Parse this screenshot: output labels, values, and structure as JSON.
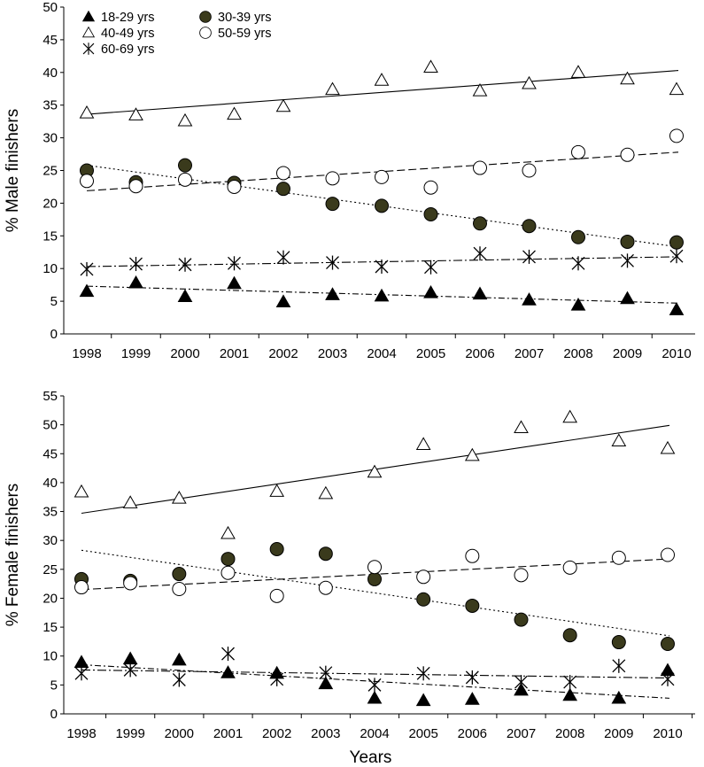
{
  "chart_data": [
    {
      "id": "male",
      "type": "scatter",
      "ylabel": "% Male finishers",
      "xlabel": "",
      "ylim": [
        0,
        50
      ],
      "yticks": [
        0,
        5,
        10,
        15,
        20,
        25,
        30,
        35,
        40,
        45,
        50
      ],
      "x": [
        "1998",
        "1999",
        "2000",
        "2001",
        "2002",
        "2003",
        "2004",
        "2005",
        "2006",
        "2007",
        "2008",
        "2009",
        "2010"
      ],
      "legend": [
        {
          "key": "s18",
          "label": "18-29 yrs"
        },
        {
          "key": "s30",
          "label": "30-39 yrs"
        },
        {
          "key": "s40",
          "label": "40-49 yrs"
        },
        {
          "key": "s50",
          "label": "50-59 yrs"
        },
        {
          "key": "s60",
          "label": "60-69 yrs"
        }
      ],
      "series": [
        {
          "key": "s18",
          "name": "18-29 yrs",
          "marker": "triangle-filled",
          "line": "dashdot",
          "values": [
            6.5,
            7.8,
            5.7,
            7.7,
            4.9,
            6.0,
            5.8,
            6.3,
            6.1,
            5.2,
            4.4,
            5.4,
            3.7
          ],
          "trend": [
            7.3,
            4.7
          ]
        },
        {
          "key": "s30",
          "name": "30-39 yrs",
          "marker": "circle-filled",
          "line": "dotted",
          "values": [
            25.0,
            23.2,
            25.8,
            23.1,
            22.2,
            19.9,
            19.6,
            18.3,
            16.9,
            16.5,
            14.8,
            14.1,
            14.0
          ],
          "trend": [
            25.8,
            13.3
          ]
        },
        {
          "key": "s40",
          "name": "40-49 yrs",
          "marker": "triangle-open",
          "line": "solid",
          "values": [
            33.8,
            33.5,
            32.6,
            33.6,
            34.8,
            37.4,
            38.8,
            40.8,
            37.2,
            38.3,
            40.0,
            39.0,
            37.4
          ],
          "trend": [
            33.6,
            40.3
          ]
        },
        {
          "key": "s50",
          "name": "50-59 yrs",
          "marker": "circle-open",
          "line": "dashed",
          "values": [
            23.4,
            22.6,
            23.6,
            22.5,
            24.6,
            23.8,
            24.0,
            22.4,
            25.4,
            25.0,
            27.8,
            27.4,
            30.3
          ],
          "trend": [
            21.9,
            27.8
          ]
        },
        {
          "key": "s60",
          "name": "60-69 yrs",
          "marker": "asterisk",
          "line": "dashdot2",
          "values": [
            9.9,
            10.7,
            10.6,
            10.8,
            11.7,
            10.9,
            10.3,
            10.2,
            12.3,
            11.8,
            10.8,
            11.2,
            11.9
          ],
          "trend": [
            10.3,
            11.8
          ]
        }
      ]
    },
    {
      "id": "female",
      "type": "scatter",
      "ylabel": "% Female finishers",
      "xlabel": "Years",
      "ylim": [
        0,
        55
      ],
      "yticks": [
        0,
        5,
        10,
        15,
        20,
        25,
        30,
        35,
        40,
        45,
        50,
        55
      ],
      "x": [
        "1998",
        "1999",
        "2000",
        "2001",
        "2002",
        "2003",
        "2004",
        "2005",
        "2006",
        "2007",
        "2008",
        "2009",
        "2010"
      ],
      "series": [
        {
          "key": "s18",
          "name": "18-29 yrs",
          "marker": "triangle-filled",
          "line": "dashdot",
          "values": [
            8.9,
            9.5,
            9.3,
            7.1,
            7.0,
            5.2,
            2.7,
            2.3,
            2.5,
            4.1,
            3.2,
            2.7,
            7.5
          ],
          "trend": [
            8.5,
            2.7
          ]
        },
        {
          "key": "s30",
          "name": "30-39 yrs",
          "marker": "circle-filled",
          "line": "dotted",
          "values": [
            23.3,
            23.0,
            24.2,
            26.8,
            28.5,
            27.7,
            23.3,
            19.8,
            18.7,
            16.3,
            13.6,
            12.4,
            12.1
          ],
          "trend": [
            28.3,
            13.5
          ]
        },
        {
          "key": "s40",
          "name": "40-49 yrs",
          "marker": "triangle-open",
          "line": "solid",
          "values": [
            38.4,
            36.5,
            37.3,
            31.2,
            38.5,
            38.1,
            41.8,
            46.6,
            44.7,
            49.5,
            51.3,
            47.2,
            45.9
          ],
          "trend": [
            34.7,
            49.9
          ]
        },
        {
          "key": "s50",
          "name": "50-59 yrs",
          "marker": "circle-open",
          "line": "dashed",
          "values": [
            21.9,
            22.6,
            21.6,
            24.4,
            20.4,
            21.8,
            25.4,
            23.7,
            27.3,
            24.0,
            25.3,
            27.0,
            27.5
          ],
          "trend": [
            21.5,
            26.8
          ]
        },
        {
          "key": "s60",
          "name": "60-69 yrs",
          "marker": "asterisk",
          "line": "dashdot2",
          "values": [
            7.0,
            7.6,
            5.9,
            10.4,
            6.0,
            7.1,
            5.0,
            7.0,
            6.3,
            5.5,
            5.5,
            8.3,
            6.0
          ],
          "trend": [
            7.6,
            6.2
          ]
        }
      ]
    }
  ]
}
